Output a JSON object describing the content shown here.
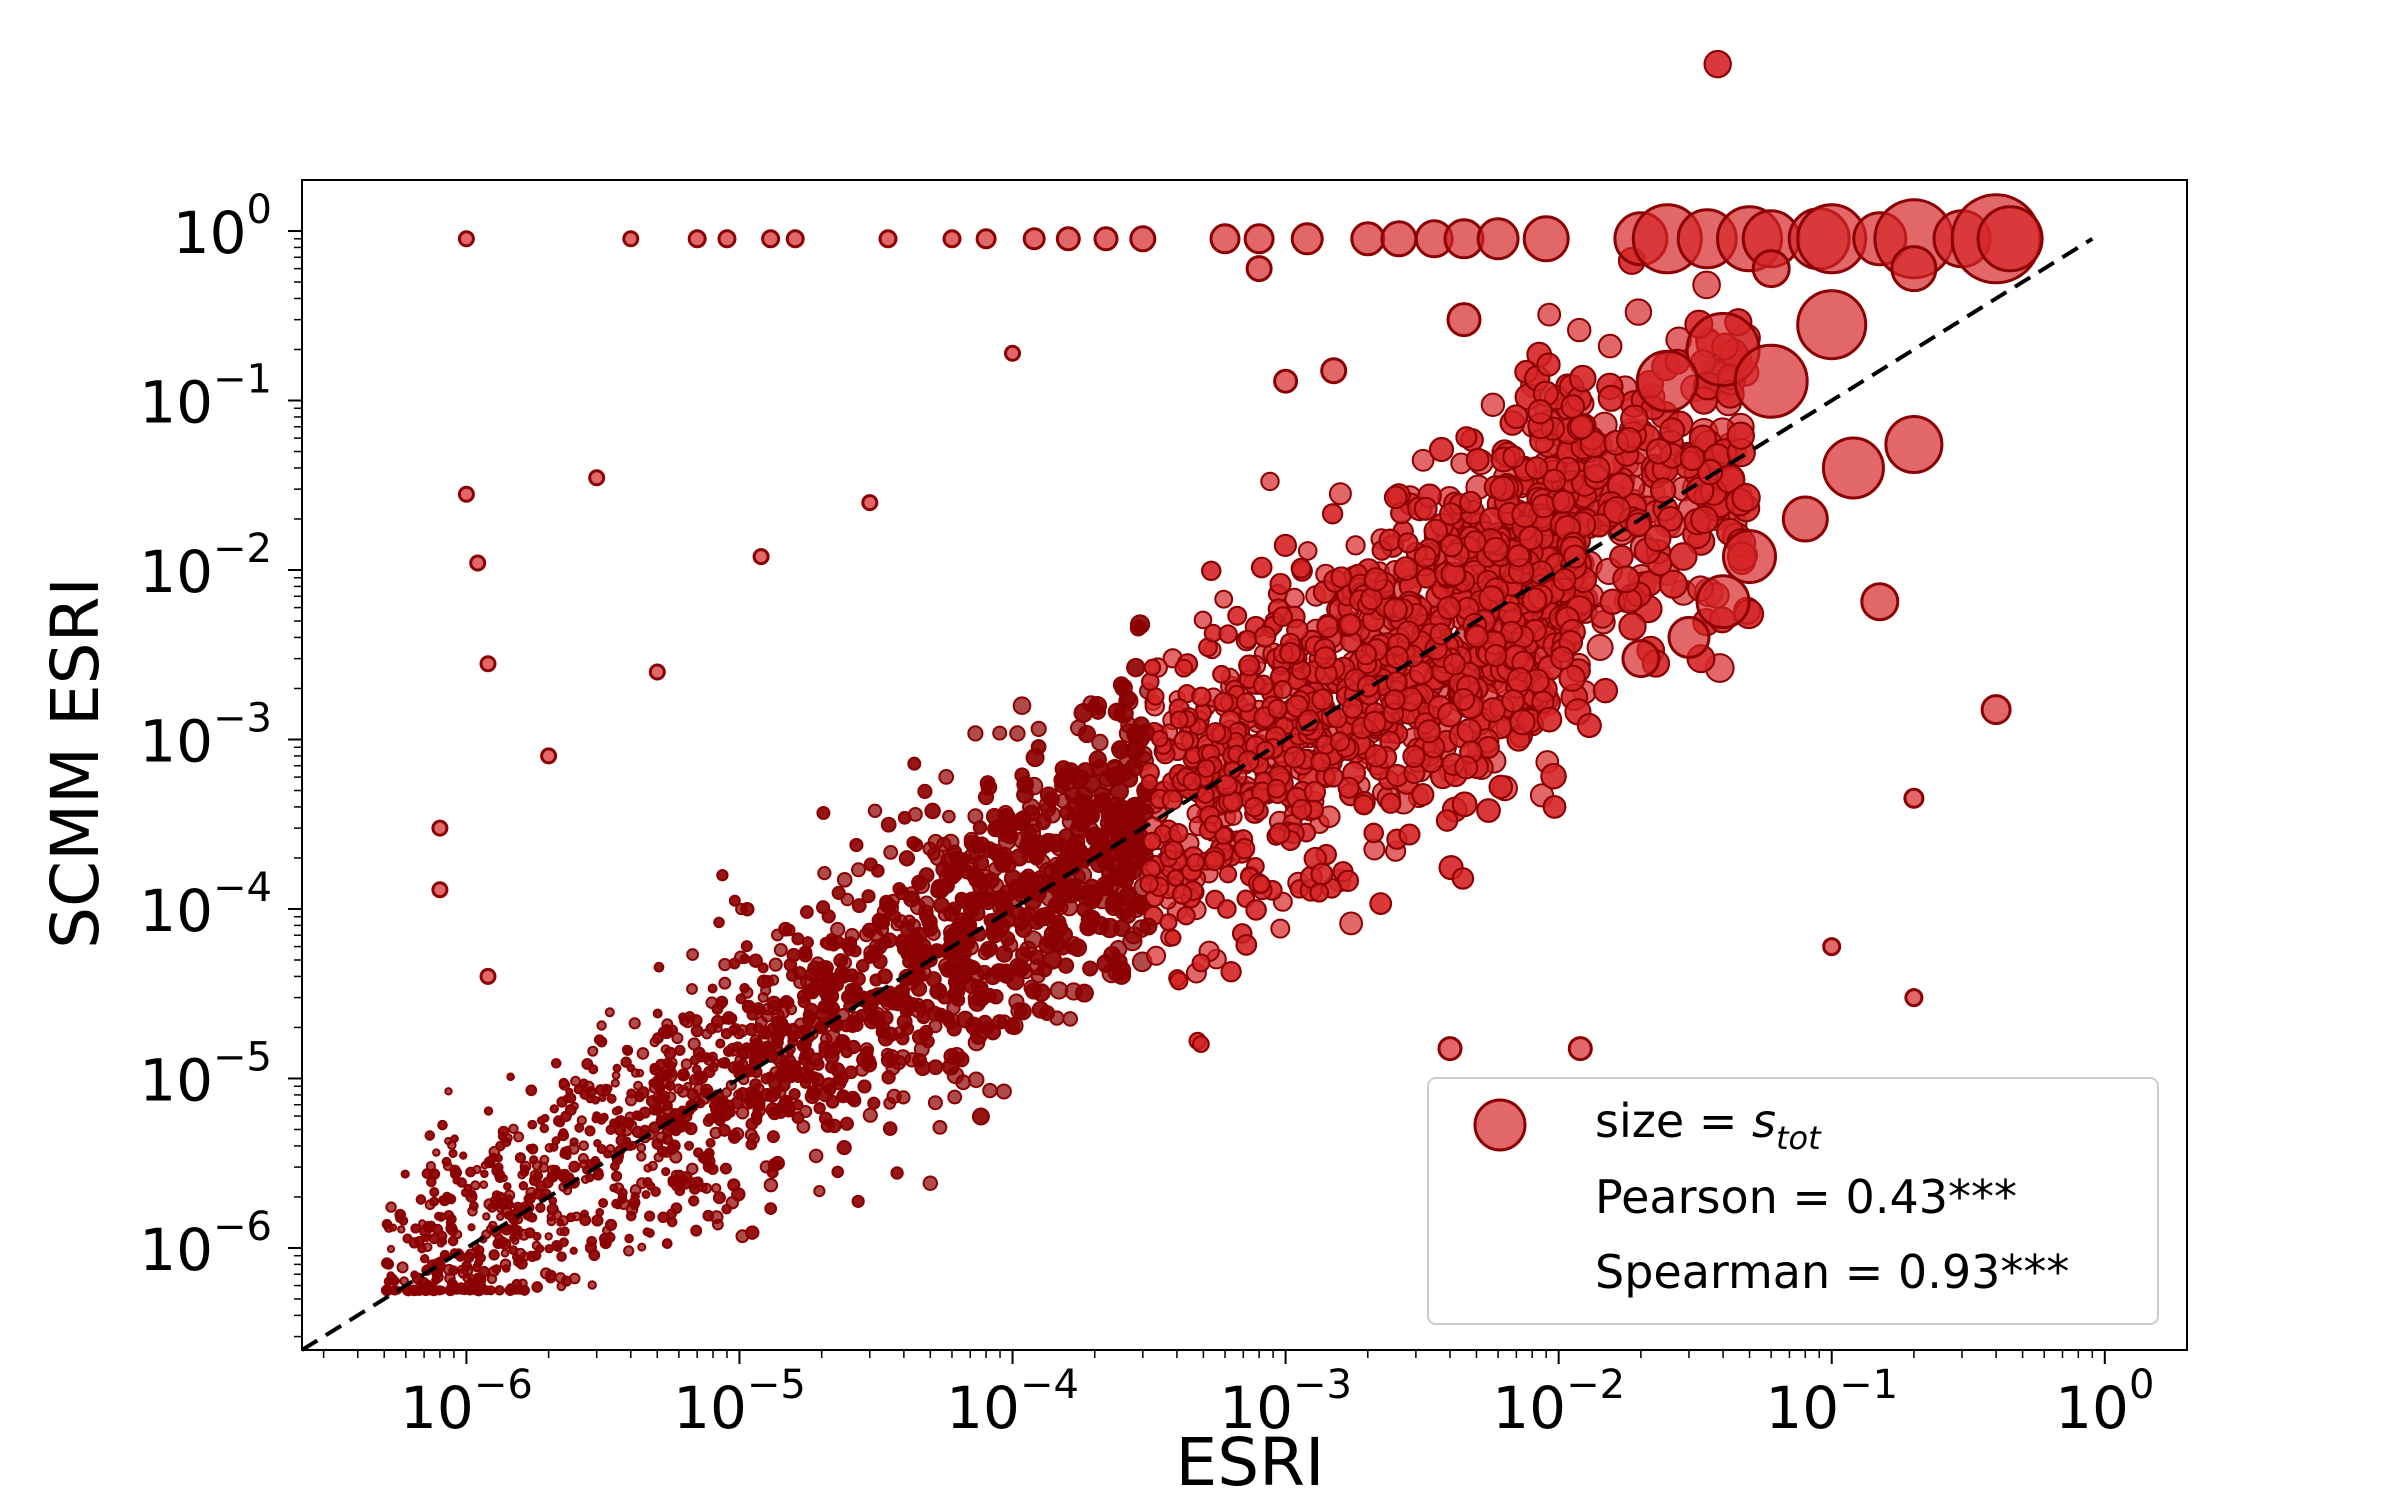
{
  "chart_data": {
    "type": "scatter",
    "xlabel": "ESRI",
    "ylabel": "SCMM ESRI",
    "xscale": "log",
    "yscale": "log",
    "xlim": [
      2.5e-07,
      2.0
    ],
    "ylim": [
      2.5e-07,
      2.0
    ],
    "x_ticks": [
      {
        "value": 1e-06,
        "base": "10",
        "exp": "−6"
      },
      {
        "value": 1e-05,
        "base": "10",
        "exp": "−5"
      },
      {
        "value": 0.0001,
        "base": "10",
        "exp": "−4"
      },
      {
        "value": 0.001,
        "base": "10",
        "exp": "−3"
      },
      {
        "value": 0.01,
        "base": "10",
        "exp": "−2"
      },
      {
        "value": 0.1,
        "base": "10",
        "exp": "−1"
      },
      {
        "value": 1,
        "base": "10",
        "exp": "0"
      }
    ],
    "y_ticks": [
      {
        "value": 1e-06,
        "base": "10",
        "exp": "−6"
      },
      {
        "value": 1e-05,
        "base": "10",
        "exp": "−5"
      },
      {
        "value": 0.0001,
        "base": "10",
        "exp": "−4"
      },
      {
        "value": 0.001,
        "base": "10",
        "exp": "−3"
      },
      {
        "value": 0.01,
        "base": "10",
        "exp": "−2"
      },
      {
        "value": 0.1,
        "base": "10",
        "exp": "−1"
      },
      {
        "value": 1,
        "base": "10",
        "exp": "0"
      }
    ],
    "reference_line": {
      "style": "dashed",
      "color": "#000000",
      "slope": 1,
      "from": [
        2.5e-07,
        2.5e-07
      ],
      "to": [
        0.9,
        0.9
      ]
    },
    "marker_color": "#d62728",
    "marker_edge_color": "#8b0000",
    "dense_color": "#8b0000",
    "size_encoding": "s_tot",
    "legend": {
      "placement": "lower-right",
      "size_label_prefix": "size = ",
      "size_label_symbol": "s",
      "size_label_sub": "tot",
      "pearson": "Pearson = 0.43***",
      "spearman": "Spearman = 0.93***"
    },
    "points": [
      {
        "x": 1e-06,
        "y": 0.9,
        "s": 0.3
      },
      {
        "x": 4e-06,
        "y": 0.9,
        "s": 0.3
      },
      {
        "x": 7e-06,
        "y": 0.9,
        "s": 0.4
      },
      {
        "x": 9e-06,
        "y": 0.9,
        "s": 0.4
      },
      {
        "x": 1.3e-05,
        "y": 0.9,
        "s": 0.4
      },
      {
        "x": 1.6e-05,
        "y": 0.9,
        "s": 0.4
      },
      {
        "x": 3.5e-05,
        "y": 0.9,
        "s": 0.4
      },
      {
        "x": 6e-05,
        "y": 0.9,
        "s": 0.4
      },
      {
        "x": 8e-05,
        "y": 0.9,
        "s": 0.5
      },
      {
        "x": 0.00012,
        "y": 0.9,
        "s": 0.6
      },
      {
        "x": 0.00016,
        "y": 0.9,
        "s": 0.7
      },
      {
        "x": 0.00022,
        "y": 0.9,
        "s": 0.7
      },
      {
        "x": 0.0003,
        "y": 0.9,
        "s": 0.8
      },
      {
        "x": 0.0006,
        "y": 0.9,
        "s": 1.0
      },
      {
        "x": 0.0008,
        "y": 0.9,
        "s": 1.0
      },
      {
        "x": 0.0012,
        "y": 0.9,
        "s": 1.1
      },
      {
        "x": 0.002,
        "y": 0.9,
        "s": 1.2
      },
      {
        "x": 0.0026,
        "y": 0.9,
        "s": 1.3
      },
      {
        "x": 0.0035,
        "y": 0.9,
        "s": 1.4
      },
      {
        "x": 0.0045,
        "y": 0.9,
        "s": 1.5
      },
      {
        "x": 0.006,
        "y": 0.9,
        "s": 1.6
      },
      {
        "x": 0.009,
        "y": 0.9,
        "s": 1.8
      },
      {
        "x": 0.02,
        "y": 0.9,
        "s": 2.2
      },
      {
        "x": 0.025,
        "y": 0.9,
        "s": 3.0
      },
      {
        "x": 0.035,
        "y": 0.9,
        "s": 2.5
      },
      {
        "x": 0.05,
        "y": 0.9,
        "s": 2.8
      },
      {
        "x": 0.06,
        "y": 0.9,
        "s": 2.4
      },
      {
        "x": 0.09,
        "y": 0.9,
        "s": 2.6
      },
      {
        "x": 0.1,
        "y": 0.9,
        "s": 3.0
      },
      {
        "x": 0.15,
        "y": 0.9,
        "s": 2.2
      },
      {
        "x": 0.2,
        "y": 0.9,
        "s": 3.5
      },
      {
        "x": 0.3,
        "y": 0.9,
        "s": 2.4
      },
      {
        "x": 0.4,
        "y": 0.9,
        "s": 4.0
      },
      {
        "x": 0.45,
        "y": 0.9,
        "s": 2.8
      },
      {
        "x": 0.0008,
        "y": 0.6,
        "s": 0.8
      },
      {
        "x": 0.2,
        "y": 0.6,
        "s": 1.8
      },
      {
        "x": 0.06,
        "y": 0.6,
        "s": 1.4
      },
      {
        "x": 0.0045,
        "y": 0.3,
        "s": 1.2
      },
      {
        "x": 0.1,
        "y": 0.28,
        "s": 3.0
      },
      {
        "x": 0.04,
        "y": 0.2,
        "s": 3.2
      },
      {
        "x": 0.06,
        "y": 0.13,
        "s": 3.2
      },
      {
        "x": 0.025,
        "y": 0.13,
        "s": 2.6
      },
      {
        "x": 0.0001,
        "y": 0.19,
        "s": 0.3
      },
      {
        "x": 0.0015,
        "y": 0.15,
        "s": 0.8
      },
      {
        "x": 0.001,
        "y": 0.13,
        "s": 0.7
      },
      {
        "x": 0.4,
        "y": 0.0015,
        "s": 1.0
      },
      {
        "x": 0.2,
        "y": 0.00045,
        "s": 0.5
      },
      {
        "x": 0.2,
        "y": 3e-05,
        "s": 0.4
      },
      {
        "x": 0.1,
        "y": 6e-05,
        "s": 0.4
      },
      {
        "x": 0.15,
        "y": 0.0065,
        "s": 1.4
      },
      {
        "x": 0.2,
        "y": 0.055,
        "s": 2.4
      },
      {
        "x": 0.12,
        "y": 0.04,
        "s": 2.6
      },
      {
        "x": 0.08,
        "y": 0.02,
        "s": 1.8
      },
      {
        "x": 0.05,
        "y": 0.012,
        "s": 2.2
      },
      {
        "x": 0.04,
        "y": 0.0065,
        "s": 2.2
      },
      {
        "x": 0.03,
        "y": 0.004,
        "s": 1.6
      },
      {
        "x": 0.02,
        "y": 0.003,
        "s": 1.4
      },
      {
        "x": 1e-06,
        "y": 0.028,
        "s": 0.3
      },
      {
        "x": 1.1e-06,
        "y": 0.011,
        "s": 0.3
      },
      {
        "x": 1.2e-06,
        "y": 0.0028,
        "s": 0.3
      },
      {
        "x": 2e-06,
        "y": 0.0008,
        "s": 0.3
      },
      {
        "x": 3e-06,
        "y": 0.035,
        "s": 0.3
      },
      {
        "x": 5e-06,
        "y": 0.0025,
        "s": 0.3
      },
      {
        "x": 1.2e-05,
        "y": 0.012,
        "s": 0.3
      },
      {
        "x": 3e-05,
        "y": 0.025,
        "s": 0.3
      },
      {
        "x": 8e-07,
        "y": 0.0003,
        "s": 0.3
      },
      {
        "x": 8e-07,
        "y": 0.00013,
        "s": 0.3
      },
      {
        "x": 1.2e-06,
        "y": 4e-05,
        "s": 0.3
      },
      {
        "x": 0.004,
        "y": 1.5e-05,
        "s": 0.7
      },
      {
        "x": 0.012,
        "y": 1.5e-05,
        "s": 0.7
      },
      {
        "x": 0.006,
        "y": 1.2e-06,
        "s": 0.5
      },
      {
        "x": 0.02,
        "y": 8e-06,
        "s": 0.5
      }
    ]
  }
}
